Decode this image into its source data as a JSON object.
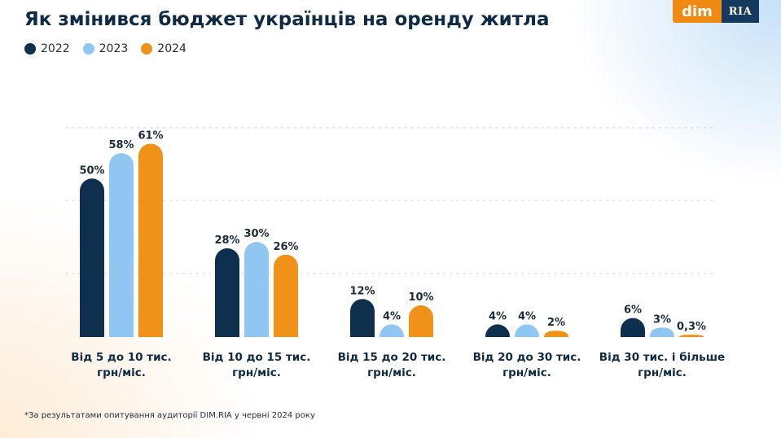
{
  "header": {
    "title": "Як змінився бюджет українців на оренду житла",
    "logo": {
      "left_text": "dim",
      "right_text": "RIA"
    }
  },
  "legend": [
    {
      "label": "2022",
      "color": "#0f2f4f"
    },
    {
      "label": "2023",
      "color": "#90c7f2"
    },
    {
      "label": "2024",
      "color": "#f0921a"
    }
  ],
  "footnote": "*За результатами опитування аудиторії DIM.RIA у червні 2024 року",
  "chart_data": {
    "type": "bar",
    "title": "Як змінився бюджет українців на оренду житла",
    "categories": [
      [
        "Від 5 до 10 тис.",
        "грн/міс."
      ],
      [
        "Від 10 до 15 тис.",
        "грн/міс."
      ],
      [
        "Від 15 до 20 тис.",
        "грн/міс."
      ],
      [
        "Від 20 до 30 тис.",
        "грн/міс."
      ],
      [
        "Від 30 тис. і більше",
        "грн/міс."
      ]
    ],
    "series": [
      {
        "name": "2022",
        "color": "#0f2f4f",
        "values": [
          50,
          28,
          12,
          4,
          6
        ],
        "labels": [
          "50%",
          "28%",
          "12%",
          "4%",
          "6%"
        ]
      },
      {
        "name": "2023",
        "color": "#90c7f2",
        "values": [
          58,
          30,
          4,
          4,
          3
        ],
        "labels": [
          "58%",
          "30%",
          "4%",
          "4%",
          "3%"
        ]
      },
      {
        "name": "2024",
        "color": "#f0921a",
        "values": [
          61,
          26,
          10,
          2,
          0.3
        ],
        "labels": [
          "61%",
          "26%",
          "10%",
          "2%",
          "0,3%"
        ]
      }
    ],
    "ylim": [
      0,
      66
    ],
    "grid": "dashed horizontal",
    "legend_position": "top-left",
    "xlabel": "",
    "ylabel": ""
  }
}
